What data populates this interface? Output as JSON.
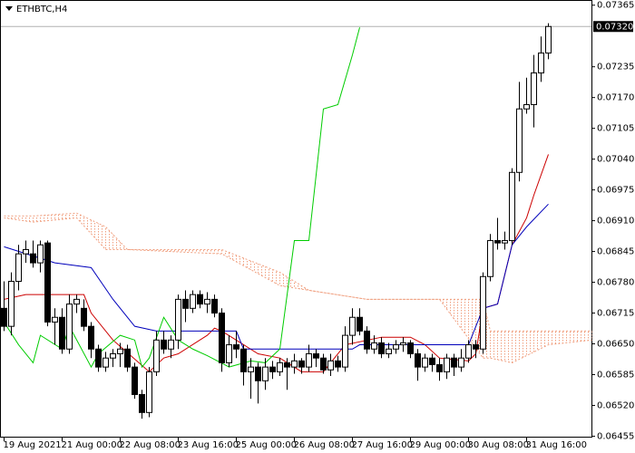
{
  "chart_data": {
    "type": "candlestick",
    "title": "ETHBTC,H4",
    "up_color": "#ffffff",
    "down_color": "#000000",
    "wick_color": "#000000",
    "xlim": [
      -0.5,
      81
    ],
    "ylim": [
      0.06453,
      0.07375
    ],
    "xticks": [
      {
        "value": 0,
        "label": "19 Aug 2021"
      },
      {
        "value": 8,
        "label": "21 Aug 00:00"
      },
      {
        "value": 16,
        "label": "22 Aug 08:00"
      },
      {
        "value": 24,
        "label": "23 Aug 16:00"
      },
      {
        "value": 32,
        "label": "25 Aug 00:00"
      },
      {
        "value": 40,
        "label": "26 Aug 08:00"
      },
      {
        "value": 48,
        "label": "27 Aug 16:00"
      },
      {
        "value": 56,
        "label": "29 Aug 00:00"
      },
      {
        "value": 64,
        "label": "30 Aug 08:00"
      },
      {
        "value": 72,
        "label": "31 Aug 16:00"
      }
    ],
    "yticks": [
      0.07365,
      0.07235,
      {
        "value": 0.0717,
        "label": "0.07170"
      },
      0.07105,
      {
        "value": 0.0704,
        "label": "0.07040"
      },
      0.06975,
      {
        "value": 0.0691,
        "label": "0.06910"
      },
      0.06845,
      {
        "value": 0.0678,
        "label": "0.06780"
      },
      0.06715,
      {
        "value": 0.0665,
        "label": "0.06650"
      },
      0.06585,
      {
        "value": 0.0652,
        "label": "0.06520"
      },
      0.06455
    ],
    "last_price": {
      "value": 0.0732,
      "label": "0.07320"
    },
    "x": [
      0,
      1,
      2,
      3,
      4,
      5,
      6,
      7,
      8,
      9,
      10,
      11,
      12,
      13,
      14,
      15,
      16,
      17,
      18,
      19,
      20,
      21,
      22,
      23,
      24,
      25,
      26,
      27,
      28,
      29,
      30,
      31,
      32,
      33,
      34,
      35,
      36,
      37,
      38,
      39,
      40,
      41,
      42,
      43,
      44,
      45,
      46,
      47,
      48,
      49,
      50,
      51,
      52,
      53,
      54,
      55,
      56,
      57,
      58,
      59,
      60,
      61,
      62,
      63,
      64,
      65,
      66,
      67,
      68,
      69,
      70,
      71,
      72,
      73,
      74,
      75
    ],
    "open": [
      0.06725,
      0.06687,
      0.06782,
      0.0684,
      0.0684,
      0.06821,
      0.06863,
      0.06696,
      0.06706,
      0.06639,
      0.06734,
      0.06725,
      0.06687,
      0.06639,
      0.06601,
      0.0662,
      0.06629,
      0.06639,
      0.06601,
      0.06543,
      0.06505,
      0.06591,
      0.06658,
      0.06639,
      0.06658,
      0.06744,
      0.06725,
      0.06754,
      0.06734,
      0.06744,
      0.06715,
      0.0661,
      0.06648,
      0.06639,
      0.06591,
      0.06601,
      0.06572,
      0.06601,
      0.06591,
      0.0661,
      0.06601,
      0.06614,
      0.06601,
      0.06629,
      0.0662,
      0.06595,
      0.06614,
      0.06601,
      0.06668,
      0.06706,
      0.06677,
      0.06639,
      0.06652,
      0.06629,
      0.06639,
      0.06648,
      0.06652,
      0.06629,
      0.06601,
      0.0662,
      0.06606,
      0.06591,
      0.0662,
      0.06601,
      0.0662,
      0.06648,
      0.06639,
      0.06792,
      0.06868,
      0.06863,
      0.06868,
      0.07012,
      0.07146,
      0.07155,
      0.07222,
      0.07264
    ],
    "high": [
      0.06782,
      0.06801,
      0.06859,
      0.06868,
      0.06868,
      0.06868,
      0.06868,
      0.06725,
      0.06725,
      0.06754,
      0.06754,
      0.06744,
      0.06696,
      0.06648,
      0.06633,
      0.06639,
      0.06652,
      0.06648,
      0.0661,
      0.06553,
      0.06601,
      0.06677,
      0.06677,
      0.06668,
      0.06754,
      0.06763,
      0.06763,
      0.06763,
      0.06759,
      0.06754,
      0.06725,
      0.06668,
      0.06677,
      0.06648,
      0.0662,
      0.0661,
      0.0662,
      0.06614,
      0.0662,
      0.0662,
      0.06629,
      0.0662,
      0.06648,
      0.06639,
      0.06629,
      0.06629,
      0.06625,
      0.06687,
      0.06725,
      0.06725,
      0.06687,
      0.06668,
      0.06664,
      0.06652,
      0.06658,
      0.06664,
      0.06658,
      0.06639,
      0.06629,
      0.06629,
      0.0662,
      0.06629,
      0.06629,
      0.06639,
      0.06658,
      0.06658,
      0.06801,
      0.06882,
      0.06916,
      0.06887,
      0.07021,
      0.07203,
      0.07212,
      0.0726,
      0.07299,
      0.07327
    ],
    "low": [
      0.06677,
      0.06668,
      0.06763,
      0.06821,
      0.06811,
      0.06801,
      0.06687,
      0.06648,
      0.06629,
      0.06629,
      0.06715,
      0.06677,
      0.0662,
      0.06591,
      0.06591,
      0.06601,
      0.06601,
      0.06591,
      0.06534,
      0.06492,
      0.06495,
      0.06582,
      0.06629,
      0.0662,
      0.06639,
      0.06696,
      0.06715,
      0.06725,
      0.06715,
      0.06706,
      0.06591,
      0.06601,
      0.0662,
      0.06562,
      0.06534,
      0.06524,
      0.06553,
      0.06576,
      0.06582,
      0.06553,
      0.06587,
      0.06587,
      0.06591,
      0.06601,
      0.06587,
      0.06582,
      0.06591,
      0.06591,
      0.06648,
      0.06668,
      0.06629,
      0.06629,
      0.0662,
      0.0662,
      0.06629,
      0.06633,
      0.0662,
      0.06572,
      0.06591,
      0.06591,
      0.06572,
      0.06576,
      0.06582,
      0.06591,
      0.0661,
      0.0662,
      0.06629,
      0.06782,
      0.06849,
      0.06849,
      0.06859,
      0.06993,
      0.07136,
      0.07107,
      0.07203,
      0.07251
    ],
    "close": [
      0.06687,
      0.06782,
      0.0684,
      0.06849,
      0.06821,
      0.06859,
      0.06696,
      0.06706,
      0.06639,
      0.06734,
      0.06744,
      0.06687,
      0.06639,
      0.06601,
      0.0662,
      0.06629,
      0.06639,
      0.06601,
      0.06543,
      0.06505,
      0.06591,
      0.06658,
      0.06639,
      0.06658,
      0.06744,
      0.06725,
      0.06754,
      0.06734,
      0.06744,
      0.06715,
      0.0661,
      0.06648,
      0.06639,
      0.06591,
      0.06601,
      0.06572,
      0.06601,
      0.06591,
      0.0661,
      0.06601,
      0.06614,
      0.06601,
      0.06629,
      0.0662,
      0.06595,
      0.06614,
      0.06601,
      0.06668,
      0.06706,
      0.06677,
      0.06639,
      0.06652,
      0.06629,
      0.06639,
      0.06648,
      0.06652,
      0.06629,
      0.06601,
      0.0662,
      0.06606,
      0.06591,
      0.0662,
      0.06601,
      0.0662,
      0.06648,
      0.06639,
      0.06792,
      0.06868,
      0.06863,
      0.06868,
      0.07012,
      0.07146,
      0.07155,
      0.07222,
      0.07264,
      0.0732
    ],
    "cloud": {
      "color": "#f0a080",
      "x": [
        0,
        4,
        10,
        14,
        17,
        30,
        38,
        42,
        50,
        55,
        60,
        66,
        67,
        70,
        75,
        81
      ],
      "span_a": [
        0.0692,
        0.0692,
        0.06926,
        0.06897,
        0.06849,
        0.0684,
        0.06773,
        0.06763,
        0.06744,
        0.06744,
        0.06744,
        0.06744,
        0.06677,
        0.06677,
        0.06677,
        0.06677
      ],
      "span_b": [
        0.06916,
        0.06907,
        0.06916,
        0.06849,
        0.06849,
        0.06849,
        0.06801,
        0.06763,
        0.06744,
        0.06744,
        0.06744,
        0.0662,
        0.0662,
        0.0661,
        0.06648,
        0.06658
      ]
    },
    "lines": [
      {
        "color": "#cc0000",
        "x": [
          0,
          3,
          8,
          11,
          12,
          15,
          20,
          22,
          24,
          28,
          29,
          30,
          35,
          38,
          41,
          44,
          47,
          52,
          56,
          58,
          60,
          64,
          65,
          66,
          68,
          70,
          72,
          73,
          75
        ],
        "values": [
          0.06744,
          0.06754,
          0.06754,
          0.06754,
          0.06715,
          0.06658,
          0.06591,
          0.0662,
          0.06629,
          0.06668,
          0.06683,
          0.06677,
          0.06629,
          0.0662,
          0.06591,
          0.06591,
          0.06648,
          0.06664,
          0.06664,
          0.06648,
          0.0662,
          0.06614,
          0.06629,
          0.06725,
          0.06734,
          0.06859,
          0.06916,
          0.06964,
          0.0705
        ]
      },
      {
        "color": "#0000bb",
        "x": [
          0,
          7,
          12,
          15,
          18,
          21,
          32,
          33,
          48,
          49,
          62,
          64,
          66,
          68,
          70,
          72,
          75
        ],
        "values": [
          0.06855,
          0.06821,
          0.06811,
          0.06744,
          0.06687,
          0.06677,
          0.06677,
          0.06639,
          0.06639,
          0.06648,
          0.06648,
          0.06648,
          0.06725,
          0.06734,
          0.06859,
          0.06897,
          0.06945
        ]
      },
      {
        "color": "#00cc00",
        "x": [
          0,
          2,
          4,
          5,
          8,
          9,
          12,
          13,
          16,
          18,
          19,
          20,
          22,
          24,
          26,
          28,
          31,
          34,
          36,
          38,
          40,
          42,
          44,
          46,
          48,
          49
        ],
        "values": [
          0.06696,
          0.06648,
          0.0661,
          0.06668,
          0.06639,
          0.06687,
          0.06601,
          0.06629,
          0.06668,
          0.06658,
          0.06601,
          0.0662,
          0.06706,
          0.06658,
          0.06639,
          0.06625,
          0.06601,
          0.06614,
          0.0661,
          0.06639,
          0.06868,
          0.06868,
          0.07146,
          0.07155,
          0.0726,
          0.07318
        ]
      }
    ]
  }
}
